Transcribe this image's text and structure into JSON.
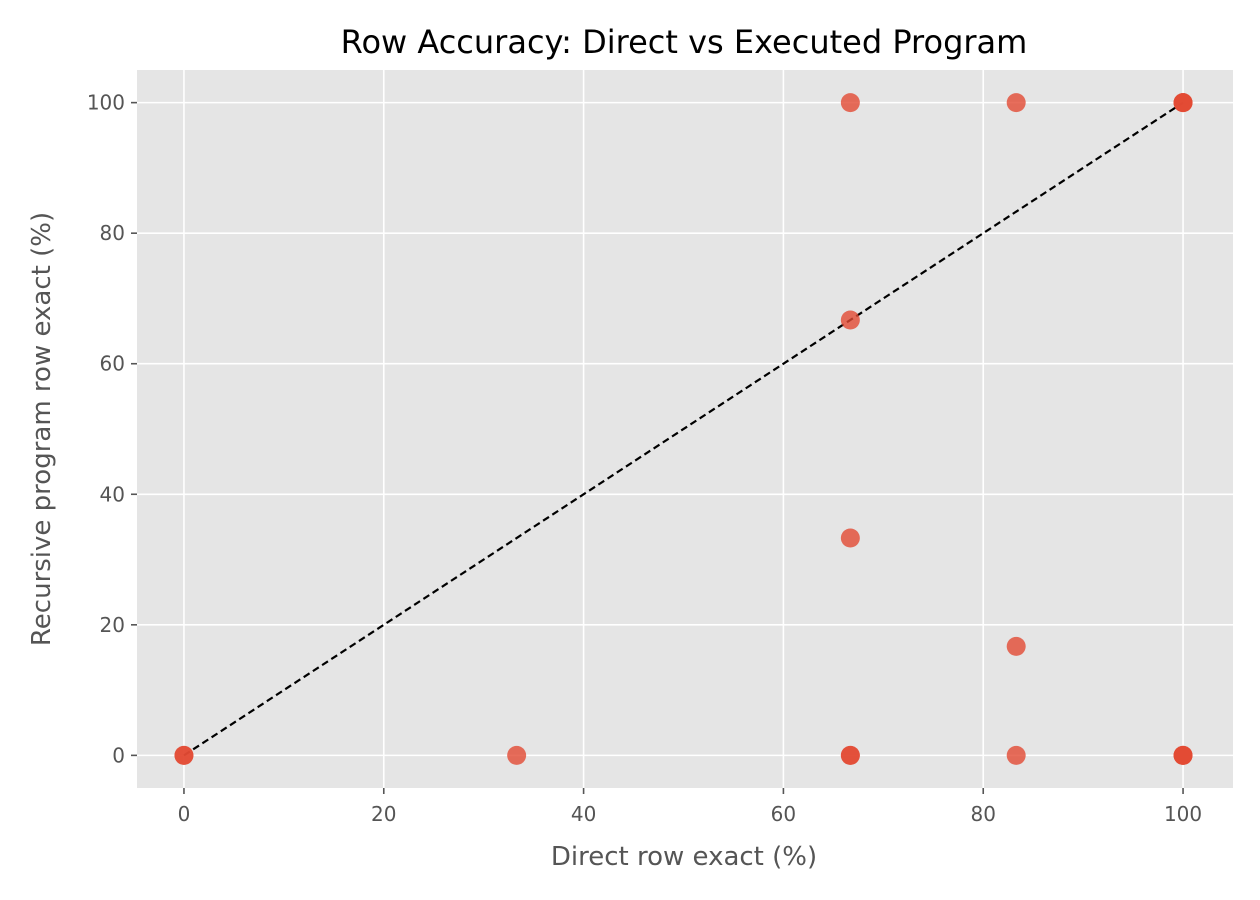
{
  "chart_data": {
    "type": "scatter",
    "title": "Row Accuracy: Direct vs Executed Program",
    "xlabel": "Direct row exact (%)",
    "ylabel": "Recursive program row exact (%)",
    "xlim": [
      -4.7,
      105
    ],
    "ylim": [
      -5,
      105
    ],
    "xticks": [
      0,
      20,
      40,
      60,
      80,
      100
    ],
    "yticks": [
      0,
      20,
      40,
      60,
      80,
      100
    ],
    "grid": true,
    "style": "ggplot",
    "colors": {
      "background": "#e5e5e5",
      "grid": "#ffffff",
      "point": "#e24a33",
      "reference_line": "#000000"
    },
    "reference_line": {
      "style": "dashed",
      "x": [
        0,
        100
      ],
      "y": [
        0,
        100
      ]
    },
    "series": [
      {
        "points": [
          {
            "x": 0,
            "y": 0
          },
          {
            "x": 0,
            "y": 0
          },
          {
            "x": 33.3,
            "y": 0
          },
          {
            "x": 66.7,
            "y": 0
          },
          {
            "x": 66.7,
            "y": 0
          },
          {
            "x": 66.7,
            "y": 33.3
          },
          {
            "x": 66.7,
            "y": 66.7
          },
          {
            "x": 66.7,
            "y": 100
          },
          {
            "x": 83.3,
            "y": 0
          },
          {
            "x": 83.3,
            "y": 16.7
          },
          {
            "x": 83.3,
            "y": 100
          },
          {
            "x": 100,
            "y": 0
          },
          {
            "x": 100,
            "y": 0
          },
          {
            "x": 100,
            "y": 0
          },
          {
            "x": 100,
            "y": 100
          },
          {
            "x": 100,
            "y": 100
          },
          {
            "x": 100,
            "y": 100
          }
        ]
      }
    ]
  }
}
